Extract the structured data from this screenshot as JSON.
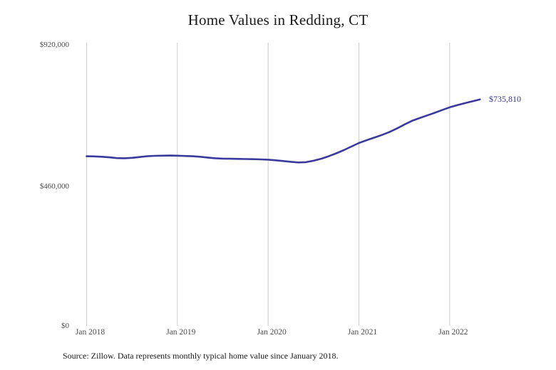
{
  "chart_data": {
    "type": "line",
    "title": "Home Values in Redding, CT",
    "xlabel": "",
    "ylabel": "",
    "unit": "USD",
    "ylim": [
      0,
      920000
    ],
    "grid": "vertical-only",
    "legend_position": "none",
    "y_tick_labels": [
      "$920,000",
      "$460,000",
      "$0"
    ],
    "y_tick_values": [
      920000,
      460000,
      0
    ],
    "x_tick_labels": [
      "Jan 2018",
      "Jan 2019",
      "Jan 2020",
      "Jan 2021",
      "Jan 2022"
    ],
    "end_label": "$735,810",
    "end_value": 735810,
    "x": [
      "Jan 2018",
      "Feb 2018",
      "Mar 2018",
      "Apr 2018",
      "May 2018",
      "Jun 2018",
      "Jul 2018",
      "Aug 2018",
      "Sep 2018",
      "Oct 2018",
      "Nov 2018",
      "Dec 2018",
      "Jan 2019",
      "Feb 2019",
      "Mar 2019",
      "Apr 2019",
      "May 2019",
      "Jun 2019",
      "Jul 2019",
      "Aug 2019",
      "Sep 2019",
      "Oct 2019",
      "Nov 2019",
      "Dec 2019",
      "Jan 2020",
      "Feb 2020",
      "Mar 2020",
      "Apr 2020",
      "May 2020",
      "Jun 2020",
      "Jul 2020",
      "Aug 2020",
      "Sep 2020",
      "Oct 2020",
      "Nov 2020",
      "Dec 2020",
      "Jan 2021",
      "Feb 2021",
      "Mar 2021",
      "Apr 2021",
      "May 2021",
      "Jun 2021",
      "Jul 2021",
      "Aug 2021",
      "Sep 2021",
      "Oct 2021",
      "Nov 2021",
      "Dec 2021",
      "Jan 2022",
      "Feb 2022",
      "Mar 2022",
      "Apr 2022",
      "May 2022"
    ],
    "series": [
      {
        "name": "Typical home value",
        "values": [
          551000,
          550500,
          549500,
          547500,
          545000,
          544500,
          546000,
          548500,
          551000,
          552500,
          553000,
          553500,
          553000,
          552000,
          551000,
          549500,
          547000,
          544500,
          543500,
          543000,
          542500,
          542000,
          541500,
          541000,
          540000,
          538000,
          535500,
          533000,
          531000,
          532000,
          536500,
          543000,
          551000,
          560500,
          571000,
          582500,
          594000,
          603000,
          611500,
          620000,
          629500,
          641000,
          654000,
          666000,
          675000,
          683500,
          692000,
          701000,
          710000,
          717000,
          723500,
          729500,
          735810
        ]
      }
    ],
    "source_note": "Source: Zillow. Data represents monthly typical home value since January 2018.",
    "colors": {
      "line": "#3a3a9c",
      "gridline": "#cccccc",
      "title_text": "#1a1a1a",
      "axis_text": "#4d4d4d",
      "end_label_text": "#333399",
      "background": "#ffffff"
    }
  }
}
